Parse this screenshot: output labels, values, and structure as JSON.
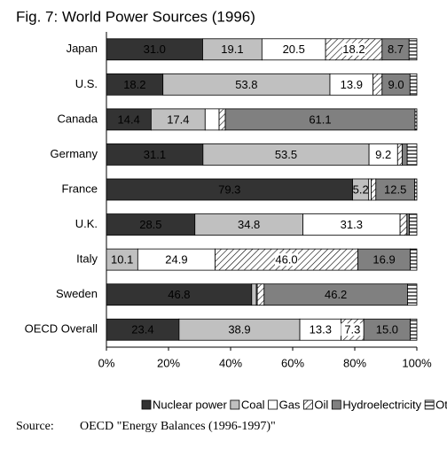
{
  "chart_data": {
    "type": "stacked-bar-horizontal",
    "title": "Fig. 7: World Power Sources (1996)",
    "categories": [
      "Japan",
      "U.S.",
      "Canada",
      "Germany",
      "France",
      "U.K.",
      "Italy",
      "Sweden",
      "OECD Overall"
    ],
    "series": [
      {
        "name": "Nuclear power",
        "color": "#333333",
        "label_color": "#ffffff",
        "values": [
          31.0,
          18.2,
          14.4,
          31.1,
          79.3,
          28.5,
          0,
          46.8,
          23.4
        ],
        "value_labels": [
          "31.0",
          "18.2",
          "14.4",
          "31.1",
          "79.3",
          "28.5",
          null,
          "46.8",
          "23.4"
        ]
      },
      {
        "name": "Coal",
        "color": "#c0c0c0",
        "label_color": "#000000",
        "values": [
          19.1,
          53.8,
          17.4,
          53.5,
          5.2,
          34.8,
          10.1,
          1.5,
          38.9
        ],
        "value_labels": [
          "19.1",
          "53.8",
          "17.4",
          "53.5",
          "5.2",
          "34.8",
          "10.1",
          null,
          "38.9"
        ]
      },
      {
        "name": "Gas",
        "color": "#ffffff",
        "label_color": "#000000",
        "values": [
          20.5,
          13.9,
          4.5,
          9.2,
          0.8,
          31.3,
          24.9,
          0.3,
          13.3
        ],
        "value_labels": [
          "20.5",
          "13.9",
          null,
          "9.2",
          null,
          "31.3",
          "24.9",
          null,
          "13.3"
        ]
      },
      {
        "name": "Oil",
        "color": "#ffffff",
        "pattern": "diagonal",
        "label_color": "#000000",
        "values": [
          18.2,
          2.9,
          2.0,
          1.5,
          1.5,
          2.2,
          46.0,
          2.2,
          7.3
        ],
        "value_labels": [
          "18.2",
          null,
          null,
          null,
          null,
          null,
          "46.0",
          null,
          "7.3"
        ]
      },
      {
        "name": "Hydroelectricity",
        "color": "#808080",
        "label_color": "#000000",
        "values": [
          8.7,
          9.0,
          61.1,
          1.6,
          12.5,
          0.8,
          16.9,
          46.2,
          15.0
        ],
        "value_labels": [
          "8.7",
          "9.0",
          "61.1",
          null,
          "12.5",
          null,
          "16.9",
          "46.2",
          "15.0"
        ]
      },
      {
        "name": "Other",
        "color": "#ffffff",
        "pattern": "grid",
        "label_color": "#000000",
        "values": [
          2.5,
          2.2,
          0.6,
          3.1,
          0.7,
          2.4,
          2.1,
          3.0,
          2.1
        ],
        "value_labels": [
          null,
          null,
          null,
          null,
          null,
          null,
          null,
          null,
          null
        ]
      }
    ],
    "xlim": [
      0,
      100
    ],
    "xticks": [
      {
        "value": 0,
        "label": "0%"
      },
      {
        "value": 20,
        "label": "20%"
      },
      {
        "value": 40,
        "label": "40%"
      },
      {
        "value": 60,
        "label": "60%"
      },
      {
        "value": 80,
        "label": "80%"
      },
      {
        "value": 100,
        "label": "100%"
      }
    ],
    "legend": "bottom",
    "source_label": "Source:",
    "source_text": "OECD \"Energy Balances (1996-1997)\""
  }
}
